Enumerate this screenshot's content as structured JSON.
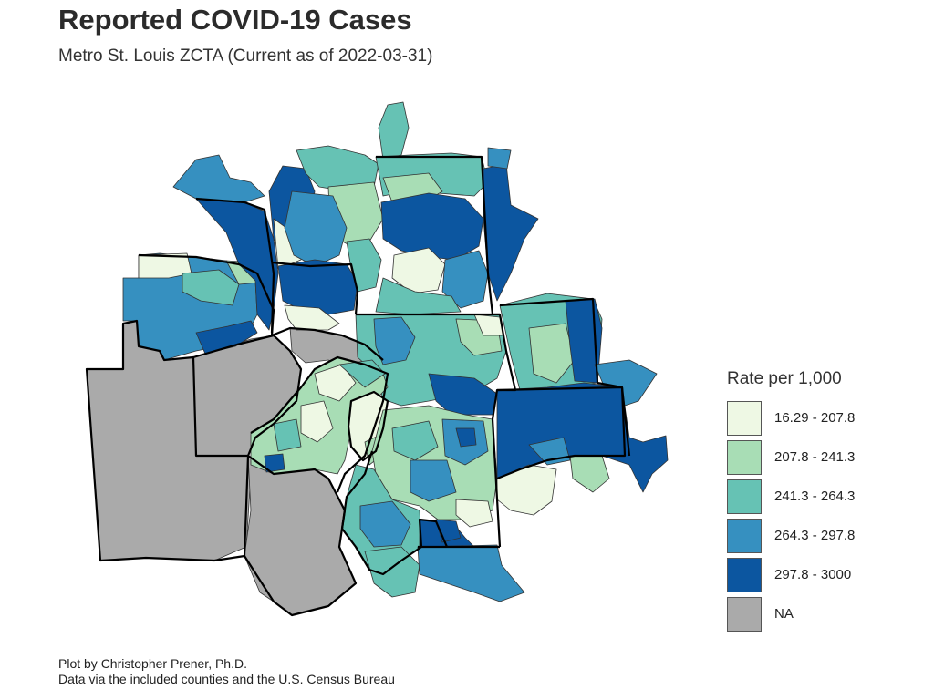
{
  "header": {
    "title": "Reported COVID-19 Cases",
    "subtitle": "Metro St. Louis ZCTA (Current as of 2022-03-31)"
  },
  "legend": {
    "title": "Rate per 1,000",
    "items": [
      {
        "label": "16.29 - 207.8",
        "color": "#eef8e4"
      },
      {
        "label": "207.8 - 241.3",
        "color": "#a8ddb5"
      },
      {
        "label": "241.3 - 264.3",
        "color": "#66c2b4"
      },
      {
        "label": "264.3 - 297.8",
        "color": "#3690c0"
      },
      {
        "label": "297.8 - 3000",
        "color": "#0c56a0"
      },
      {
        "label": "NA",
        "color": "#aaaaaa"
      }
    ]
  },
  "caption": {
    "line1": "Plot by Christopher Prener, Ph.D.",
    "line2": "Data via the included counties and the U.S. Census Bureau"
  }
}
